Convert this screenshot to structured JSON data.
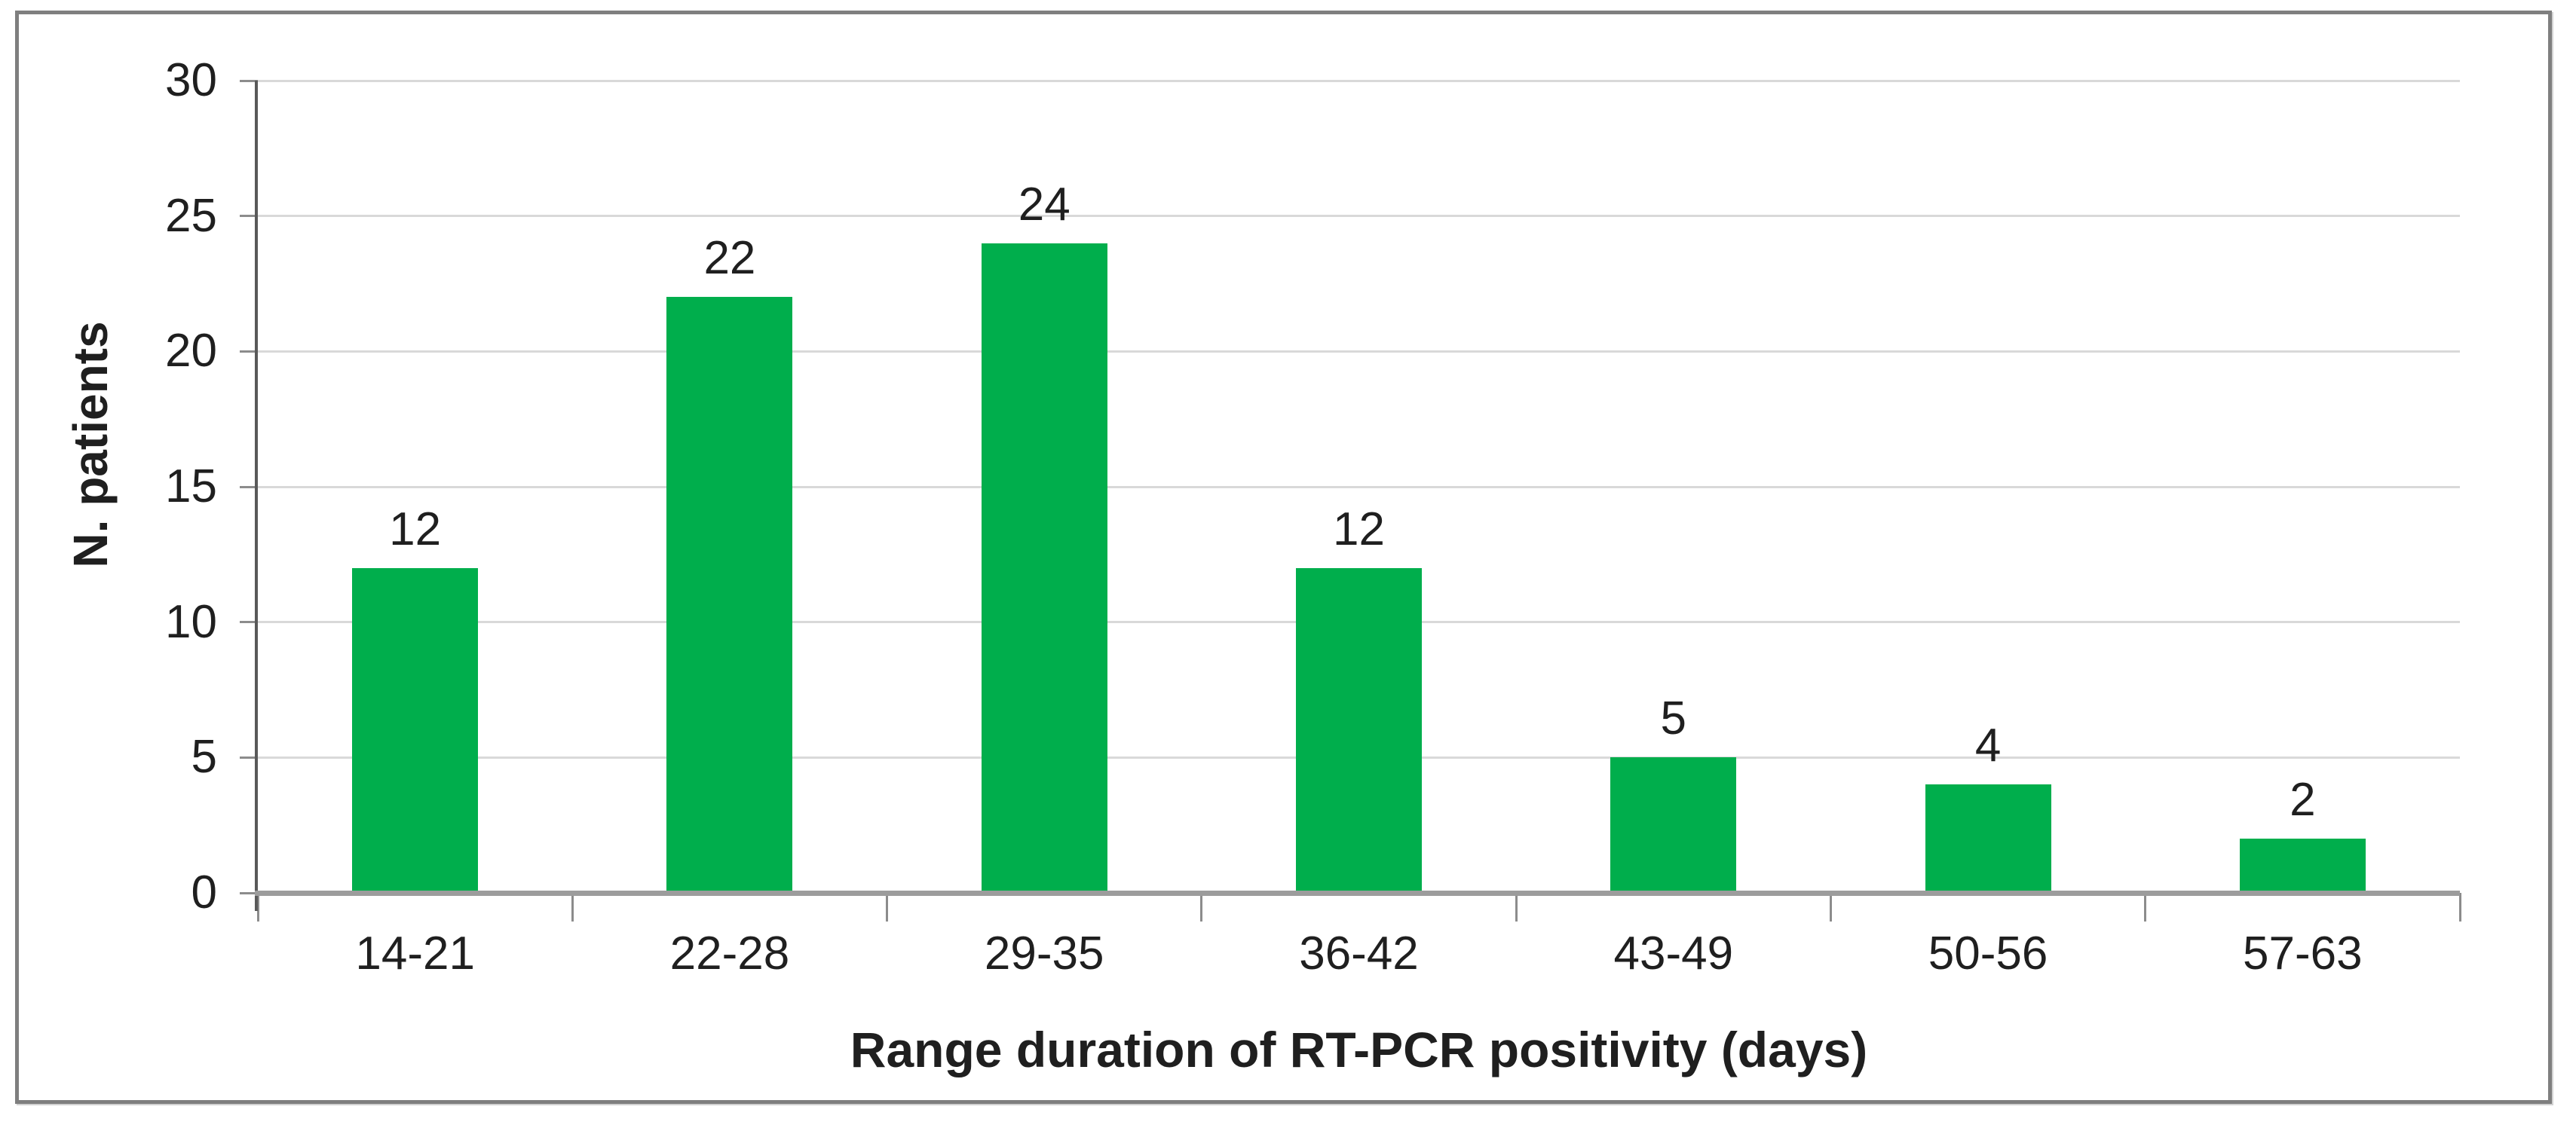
{
  "chart_data": {
    "type": "bar",
    "categories": [
      "14-21",
      "22-28",
      "29-35",
      "36-42",
      "43-49",
      "50-56",
      "57-63"
    ],
    "values": [
      12,
      22,
      24,
      12,
      5,
      4,
      2
    ],
    "title": "",
    "xlabel": "Range duration of RT-PCR positivity (days)",
    "ylabel": "N. patients",
    "ylim": [
      0,
      30
    ],
    "yticks": [
      0,
      5,
      10,
      15,
      20,
      25,
      30
    ],
    "grid": true,
    "legend_position": "none",
    "data_labels": [
      "12",
      "22",
      "24",
      "12",
      "5",
      "4",
      "2"
    ],
    "ytick_labels": [
      "0",
      "5",
      "10",
      "15",
      "20",
      "25",
      "30"
    ],
    "colors": {
      "bar": "#00AE4C",
      "gridline": "#d9d9d9",
      "y_axis_line": "#595959",
      "x_baseline": "#9c9c9c",
      "tick": "#8c8c8c",
      "text": "#1f1f1f",
      "frame": "#7f7f7f"
    }
  }
}
